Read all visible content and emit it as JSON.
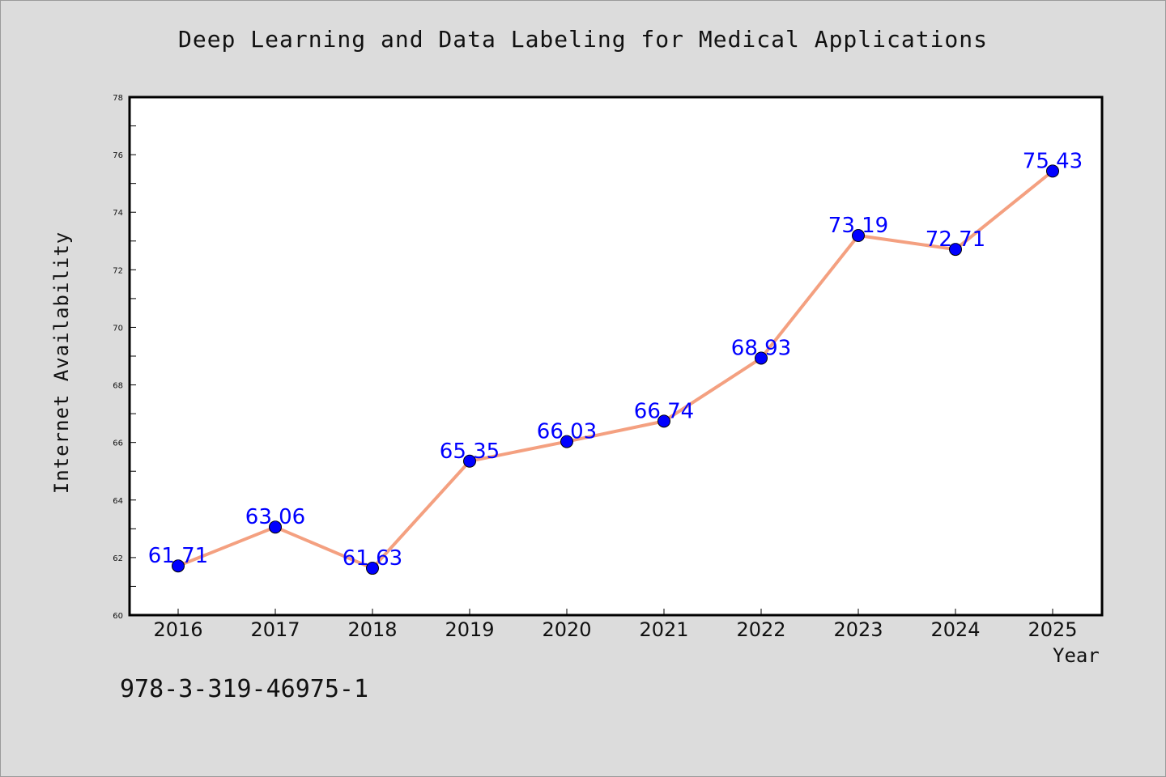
{
  "chart_data": {
    "type": "line",
    "title": "Deep Learning and Data Labeling for Medical Applications",
    "xlabel": "Year",
    "ylabel": "Internet Availability",
    "categories": [
      "2016",
      "2017",
      "2018",
      "2019",
      "2020",
      "2021",
      "2022",
      "2023",
      "2024",
      "2025"
    ],
    "series": [
      {
        "values": [
          61.71,
          63.06,
          61.63,
          65.35,
          66.03,
          66.74,
          68.93,
          73.19,
          72.71,
          75.43
        ],
        "data_labels": [
          "61.71",
          "63.06",
          "61.63",
          "65.35",
          "66.03",
          "66.74",
          "68.93",
          "73.19",
          "72.71",
          "75.43"
        ]
      }
    ],
    "ylim": [
      60,
      78
    ],
    "y_ticks": [
      "60",
      "62",
      "64",
      "66",
      "68",
      "70",
      "72",
      "74",
      "76",
      "78"
    ],
    "grid": false,
    "legend": "none",
    "colors": {
      "line": "#f4a080",
      "marker": "#0000ff",
      "data_label": "#0000ff",
      "plot_background": "#ffffff",
      "figure_background": "#dcdcdc"
    }
  },
  "annotation": "978-3-319-46975-1"
}
